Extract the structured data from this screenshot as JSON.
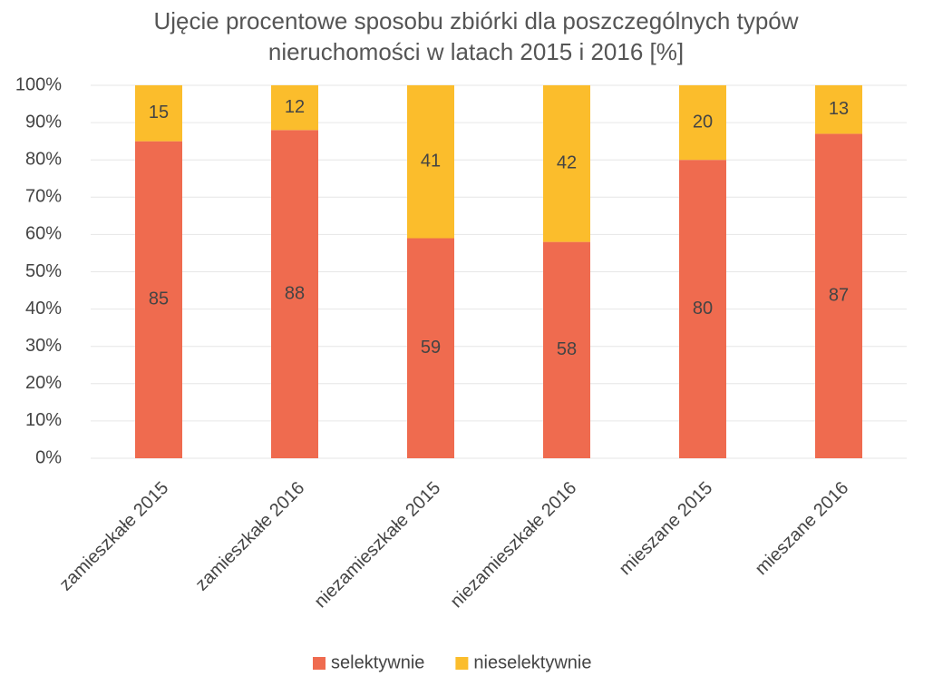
{
  "chart_data": {
    "type": "stacked_bar",
    "title": "Ujęcie procentowe sposobu zbiórki dla poszczególnych typów nieruchomości w  latach 2015 i 2016 [%]",
    "categories": [
      "zamieszkałe 2015",
      "zamieszkałe 2016",
      "niezamieszkałe 2015",
      "niezamieszkałe 2016",
      "mieszane 2015",
      "mieszane 2016"
    ],
    "series": [
      {
        "name": "selektywnie",
        "color": "#ef6b4f",
        "values": [
          85,
          88,
          59,
          58,
          80,
          87
        ]
      },
      {
        "name": "nieselektywnie",
        "color": "#fbbd2c",
        "values": [
          15,
          12,
          41,
          42,
          20,
          13
        ]
      }
    ],
    "ylim": [
      0,
      100
    ],
    "yticks": [
      {
        "value": 0,
        "label": "0%"
      },
      {
        "value": 10,
        "label": "10%"
      },
      {
        "value": 20,
        "label": "20%"
      },
      {
        "value": 30,
        "label": "30%"
      },
      {
        "value": 40,
        "label": "40%"
      },
      {
        "value": 50,
        "label": "50%"
      },
      {
        "value": 60,
        "label": "60%"
      },
      {
        "value": 70,
        "label": "70%"
      },
      {
        "value": 80,
        "label": "80%"
      },
      {
        "value": 90,
        "label": "90%"
      },
      {
        "value": 100,
        "label": "100%"
      }
    ],
    "grid": true,
    "legend": "bottom"
  }
}
